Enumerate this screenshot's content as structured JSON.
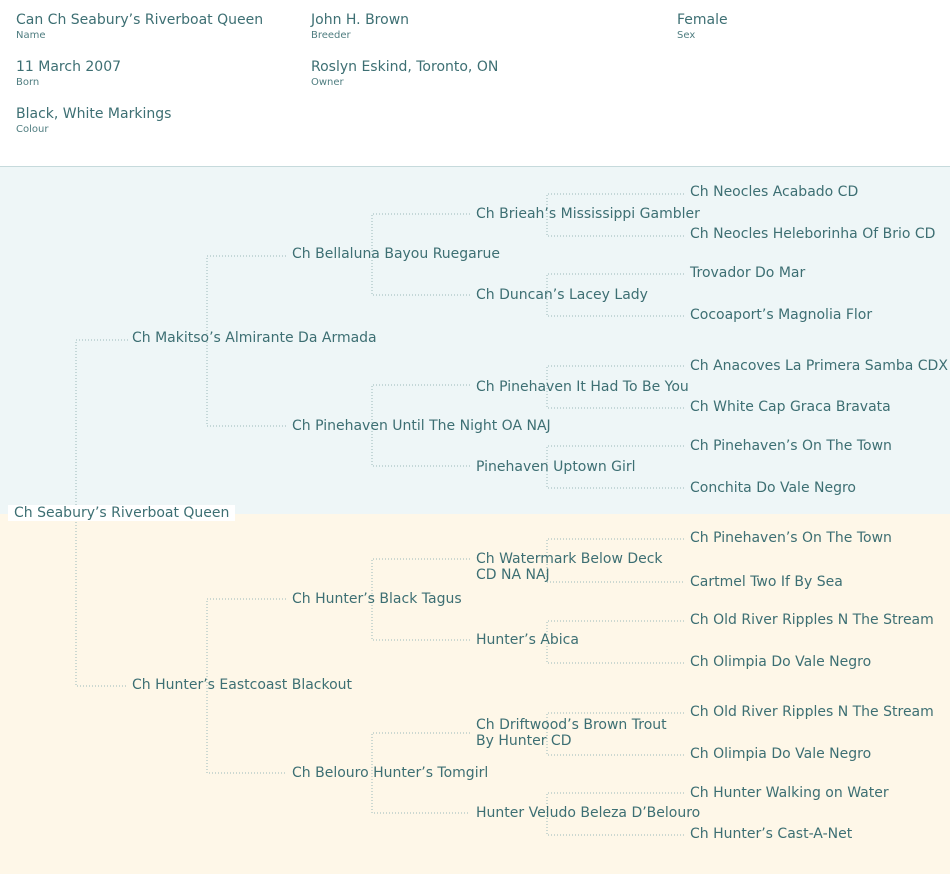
{
  "info": {
    "name_value": "Can Ch Seabury’s Riverboat Queen",
    "name_label": "Name",
    "breeder_value": "John H. Brown",
    "breeder_label": "Breeder",
    "sex_value": "Female",
    "sex_label": "Sex",
    "born_value": "11 March 2007",
    "born_label": "Born",
    "owner_value": "Roslyn  Eskind, Toronto, ON",
    "owner_label": "Owner",
    "colour_value": "Black, White Markings",
    "colour_label": "Colour"
  },
  "pedigree": {
    "subject": "Ch Seabury’s Riverboat Queen",
    "sire": "Ch Makitso’s Almirante Da Armada",
    "sire_sire": "Ch Bellaluna Bayou Ruegarue",
    "sire_sire_sire": "Ch Brieah’s Mississippi Gambler",
    "sire_sire_sire_sire": "Ch Neocles Acabado CD",
    "sire_sire_sire_dam": "Ch Neocles Heleborinha Of Brio CD",
    "sire_sire_dam": "Ch Duncan’s Lacey Lady",
    "sire_sire_dam_sire": "Trovador Do Mar",
    "sire_sire_dam_dam": "Cocoaport’s Magnolia Flor",
    "sire_dam": "Ch Pinehaven Until The Night OA NAJ",
    "sire_dam_sire": "Ch Pinehaven It Had To Be You",
    "sire_dam_sire_sire": "Ch Anacoves La Primera Samba CDX",
    "sire_dam_sire_dam": "Ch White Cap Graca Bravata",
    "sire_dam_dam": "Pinehaven Uptown Girl",
    "sire_dam_dam_sire": "Ch Pinehaven’s On The Town",
    "sire_dam_dam_dam": "Conchita Do Vale Negro",
    "dam": "Ch Hunter’s Eastcoast Blackout",
    "dam_sire": "Ch Hunter’s Black Tagus",
    "dam_sire_sire": "Ch Watermark Below Deck CD NA NAJ",
    "dam_sire_sire_sire": "Ch Pinehaven’s On The Town",
    "dam_sire_sire_dam": "Cartmel Two If By Sea",
    "dam_sire_dam": "Hunter’s Abica",
    "dam_sire_dam_sire": "Ch Old River Ripples N The Stream",
    "dam_sire_dam_dam": "Ch Olimpia Do Vale Negro",
    "dam_dam": "Ch Belouro Hunter’s Tomgirl",
    "dam_dam_sire": "Ch Driftwood’s Brown Trout By Hunter CD",
    "dam_dam_sire_sire": "Ch Old River Ripples N The Stream",
    "dam_dam_sire_dam": "Ch Olimpia Do Vale Negro",
    "dam_dam_dam": "Hunter Veludo Beleza D’Belouro",
    "dam_dam_dam_sire": "Ch Hunter Walking on Water",
    "dam_dam_dam_dam": "Ch Hunter’s Cast-A-Net"
  },
  "colors": {
    "text": "#3d6f73",
    "sire_background": "#eef6f7",
    "dam_background": "#fef7e8",
    "connector": "#9ab8ba"
  }
}
